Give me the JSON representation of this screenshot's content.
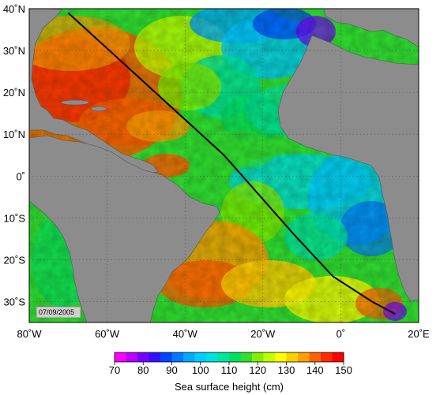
{
  "map": {
    "date_stamp": "07/09/2005",
    "land_color": "#8c8c8c",
    "lat_ticks": [
      {
        "label": "40˚N",
        "value": 40
      },
      {
        "label": "30˚N",
        "value": 30
      },
      {
        "label": "20˚N",
        "value": 20
      },
      {
        "label": "10˚N",
        "value": 10
      },
      {
        "label": "0˚",
        "value": 0
      },
      {
        "label": "10˚S",
        "value": -10
      },
      {
        "label": "20˚S",
        "value": -20
      },
      {
        "label": "30˚S",
        "value": -30
      }
    ],
    "lon_ticks": [
      {
        "label": "80˚W",
        "value": -80
      },
      {
        "label": "60˚W",
        "value": -60
      },
      {
        "label": "40˚W",
        "value": -40
      },
      {
        "label": "20˚W",
        "value": -20
      },
      {
        "label": "0˚",
        "value": 0
      },
      {
        "label": "20˚E",
        "value": 20
      }
    ],
    "extent": {
      "lon": [
        -80,
        20
      ],
      "lat": [
        -35,
        40
      ]
    },
    "track": [
      [
        -70,
        39
      ],
      [
        -50,
        22
      ],
      [
        -30,
        5
      ],
      [
        -12,
        -14
      ],
      [
        -2,
        -24
      ],
      [
        8,
        -30
      ],
      [
        14,
        -33
      ]
    ]
  },
  "colorbar": {
    "title": "Sea surface height (cm)",
    "tick_labels": [
      "70",
      "80",
      "90",
      "100",
      "110",
      "120",
      "130",
      "140",
      "150"
    ],
    "colors": [
      "#ff00ff",
      "#bb00ff",
      "#7700ff",
      "#3311ff",
      "#0044ff",
      "#0077ff",
      "#00aaff",
      "#00ccff",
      "#00e0e0",
      "#00e6a0",
      "#00e060",
      "#30e030",
      "#80f000",
      "#c0ff00",
      "#ffff00",
      "#ffd000",
      "#ffa000",
      "#ff6000",
      "#ff2a00",
      "#ff0000"
    ]
  }
}
